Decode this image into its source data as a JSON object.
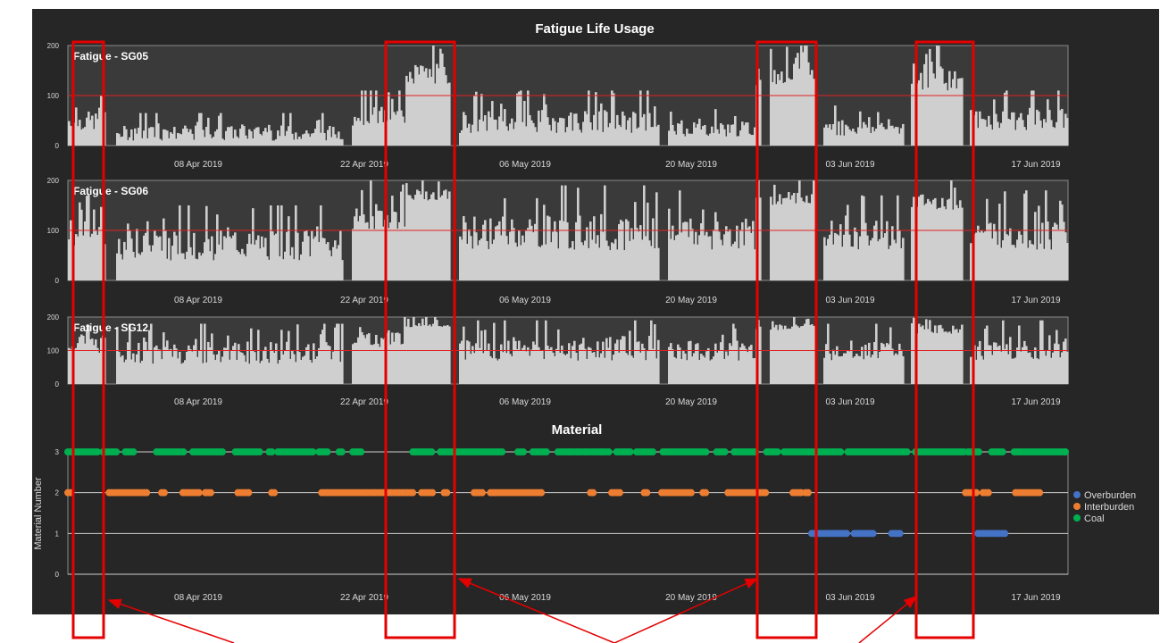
{
  "chart_data": [
    {
      "type": "bar",
      "title": "Fatigue Life Usage",
      "panel_label": "Fatigue - SG05",
      "x_ticks": [
        "08 Apr 2019",
        "22 Apr 2019",
        "06 May 2019",
        "20 May 2019",
        "03 Jun 2019",
        "17 Jun 2019"
      ],
      "y_ticks": [
        "0",
        "100",
        "200"
      ],
      "ylim": [
        0,
        200
      ],
      "reference_line": 100,
      "colors": {
        "bars": "#d0d0d0",
        "reference": "#e02020",
        "background": "#3a3a3a"
      },
      "segments": [
        {
          "start": 0,
          "end": 3,
          "base": 30,
          "amp": 70
        },
        {
          "start": 3,
          "end": 22,
          "base": 10,
          "amp": 55
        },
        {
          "start": 22,
          "end": 27,
          "base": 40,
          "amp": 70
        },
        {
          "start": 27,
          "end": 31,
          "base": 120,
          "amp": 80
        },
        {
          "start": 31,
          "end": 47,
          "base": 25,
          "amp": 85
        },
        {
          "start": 47,
          "end": 55,
          "base": 18,
          "amp": 55
        },
        {
          "start": 55,
          "end": 60,
          "base": 120,
          "amp": 80
        },
        {
          "start": 60,
          "end": 67,
          "base": 20,
          "amp": 60
        },
        {
          "start": 67,
          "end": 72,
          "base": 110,
          "amp": 90
        },
        {
          "start": 72,
          "end": 80,
          "base": 30,
          "amp": 80
        }
      ]
    },
    {
      "type": "bar",
      "panel_label": "Fatigue - SG06",
      "x_ticks": [
        "08 Apr 2019",
        "22 Apr 2019",
        "06 May 2019",
        "20 May 2019",
        "03 Jun 2019",
        "17 Jun 2019"
      ],
      "y_ticks": [
        "0",
        "100",
        "200"
      ],
      "ylim": [
        0,
        200
      ],
      "reference_line": 100,
      "segments": [
        {
          "start": 0,
          "end": 3,
          "base": 70,
          "amp": 110
        },
        {
          "start": 3,
          "end": 22,
          "base": 40,
          "amp": 110
        },
        {
          "start": 22,
          "end": 27,
          "base": 100,
          "amp": 100
        },
        {
          "start": 27,
          "end": 31,
          "base": 160,
          "amp": 40
        },
        {
          "start": 31,
          "end": 47,
          "base": 60,
          "amp": 130
        },
        {
          "start": 47,
          "end": 55,
          "base": 60,
          "amp": 120
        },
        {
          "start": 55,
          "end": 60,
          "base": 150,
          "amp": 50
        },
        {
          "start": 60,
          "end": 67,
          "base": 60,
          "amp": 110
        },
        {
          "start": 67,
          "end": 72,
          "base": 140,
          "amp": 60
        },
        {
          "start": 72,
          "end": 80,
          "base": 60,
          "amp": 120
        }
      ]
    },
    {
      "type": "bar",
      "panel_label": "Fatigue - SG12",
      "x_ticks": [
        "08 Apr 2019",
        "22 Apr 2019",
        "06 May 2019",
        "20 May 2019",
        "03 Jun 2019",
        "17 Jun 2019"
      ],
      "y_ticks": [
        "0",
        "100",
        "200"
      ],
      "ylim": [
        0,
        200
      ],
      "reference_line": 100,
      "segments": [
        {
          "start": 0,
          "end": 3,
          "base": 90,
          "amp": 100
        },
        {
          "start": 3,
          "end": 22,
          "base": 60,
          "amp": 120
        },
        {
          "start": 22,
          "end": 27,
          "base": 110,
          "amp": 90
        },
        {
          "start": 27,
          "end": 31,
          "base": 170,
          "amp": 30
        },
        {
          "start": 31,
          "end": 47,
          "base": 70,
          "amp": 120
        },
        {
          "start": 47,
          "end": 55,
          "base": 70,
          "amp": 110
        },
        {
          "start": 55,
          "end": 60,
          "base": 160,
          "amp": 40
        },
        {
          "start": 60,
          "end": 67,
          "base": 70,
          "amp": 110
        },
        {
          "start": 67,
          "end": 72,
          "base": 150,
          "amp": 50
        },
        {
          "start": 72,
          "end": 80,
          "base": 70,
          "amp": 120
        }
      ]
    },
    {
      "type": "scatter",
      "title": "Material",
      "ylabel": "Material Number",
      "x_ticks": [
        "08 Apr 2019",
        "22 Apr 2019",
        "06 May 2019",
        "20 May 2019",
        "03 Jun 2019",
        "17 Jun 2019"
      ],
      "y_ticks": [
        "0",
        "1",
        "2",
        "3"
      ],
      "ylim": [
        0,
        3
      ],
      "legend_position": "right",
      "series": [
        {
          "name": "Overburden",
          "color": "#4472c4",
          "value": 1,
          "ranges": [
            [
              59.5,
              62.4
            ],
            [
              62.9,
              64.6
            ],
            [
              65.9,
              66.6
            ],
            [
              72.8,
              75.0
            ]
          ]
        },
        {
          "name": "Interburden",
          "color": "#ed7d31",
          "value": 2,
          "ranges": [
            [
              0,
              0.3
            ],
            [
              3.3,
              6.4
            ],
            [
              7.5,
              7.8
            ],
            [
              9.2,
              10.5
            ],
            [
              11.0,
              11.6
            ],
            [
              13.6,
              14.5
            ],
            [
              16.3,
              16.7
            ],
            [
              20.3,
              27.6
            ],
            [
              28.3,
              29.3
            ],
            [
              30.1,
              30.5
            ],
            [
              32.5,
              33.2
            ],
            [
              33.8,
              38.0
            ],
            [
              41.8,
              42.1
            ],
            [
              43.5,
              44.3
            ],
            [
              46.1,
              46.5
            ],
            [
              47.5,
              50.0
            ],
            [
              50.8,
              51.2
            ],
            [
              52.8,
              56.0
            ],
            [
              58.0,
              58.7
            ],
            [
              59.0,
              59.3
            ],
            [
              71.8,
              72.7
            ],
            [
              73.2,
              73.8
            ],
            [
              75.8,
              77.8
            ]
          ]
        },
        {
          "name": "Coal",
          "color": "#00b050",
          "value": 3,
          "ranges": [
            [
              0,
              2.4
            ],
            [
              2.8,
              4.0
            ],
            [
              4.6,
              5.3
            ],
            [
              7.1,
              9.3
            ],
            [
              10.0,
              12.4
            ],
            [
              13.4,
              15.4
            ],
            [
              16.1,
              16.5
            ],
            [
              16.8,
              19.6
            ],
            [
              20.1,
              20.9
            ],
            [
              21.7,
              22.1
            ],
            [
              22.8,
              23.5
            ],
            [
              27.6,
              29.3
            ],
            [
              29.8,
              34.8
            ],
            [
              36.0,
              36.6
            ],
            [
              37.2,
              38.4
            ],
            [
              39.2,
              43.4
            ],
            [
              43.9,
              45.0
            ],
            [
              45.5,
              46.8
            ],
            [
              47.6,
              51.1
            ],
            [
              51.9,
              52.6
            ],
            [
              53.3,
              55.1
            ],
            [
              55.9,
              56.8
            ],
            [
              57.3,
              62.0
            ],
            [
              62.4,
              67.3
            ],
            [
              67.8,
              71.7
            ],
            [
              72.0,
              73.0
            ],
            [
              73.9,
              74.8
            ],
            [
              75.7,
              80.0
            ]
          ]
        }
      ]
    }
  ],
  "annotations": {
    "highlight_color": "#e50000",
    "highlight_count": 4,
    "arrow_count": 4
  }
}
